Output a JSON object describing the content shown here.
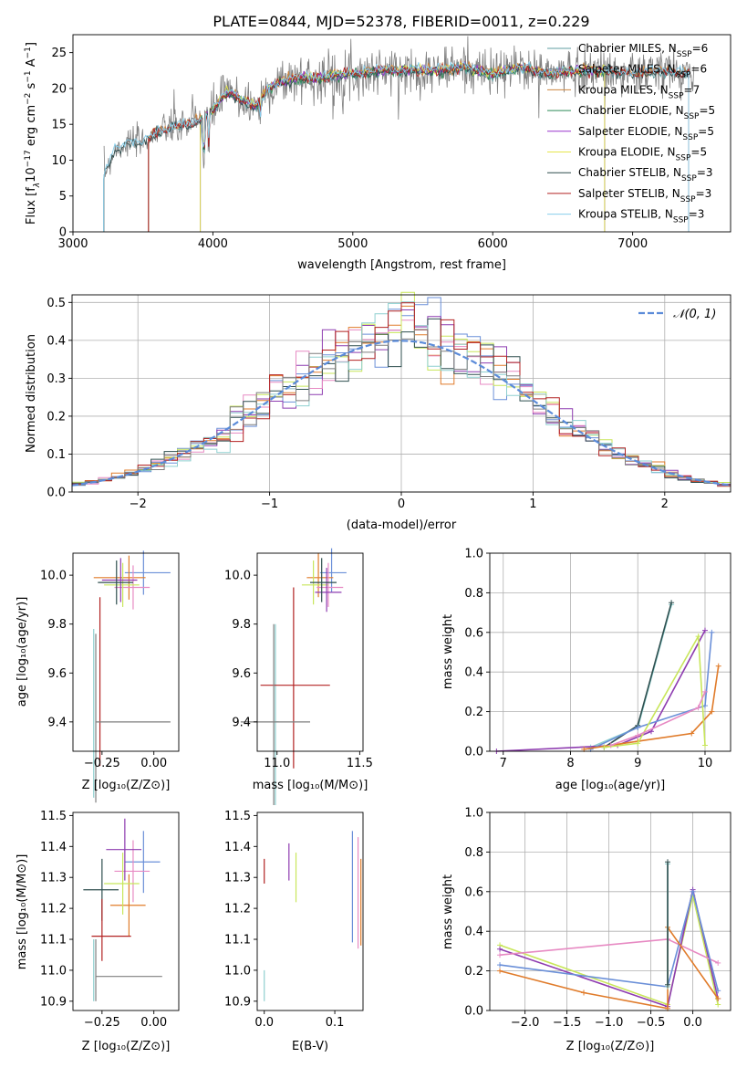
{
  "figure_title": "PLATE=0844, MJD=52378, FIBERID=0011, z=0.229",
  "colors": {
    "chabrier_miles": "#5f9ea0",
    "salpeter_miles": "#708090",
    "kroupa_miles": "#cd853f",
    "chabrier_elodie": "#2e8b57",
    "salpeter_elodie": "#9932cc",
    "kroupa_elodie": "#e6e64c",
    "chabrier_stelib": "#2f4f4f",
    "salpeter_stelib": "#b22222",
    "kroupa_stelib": "#87ceeb",
    "normal": "#5b8bd9",
    "orange": "#e07b2a",
    "blue": "#6a8fd8",
    "purple": "#8e3cb0",
    "pink": "#e78ac3",
    "lime": "#c8e65a",
    "teal": "#8fd0d0",
    "red": "#b22222",
    "dark": "#2f4f4f",
    "grey": "#7f7f7f"
  },
  "chart_data": [
    {
      "type": "line",
      "title": "PLATE=0844, MJD=52378, FIBERID=0011, z=0.229",
      "xlabel": "wavelength [Angstrom, rest frame]",
      "ylabel": "Flux [f_λ 10^-17 erg cm^-2 s^-1 A^-1]",
      "xlim": [
        3000,
        7700
      ],
      "ylim": [
        0,
        27.5
      ],
      "xticks": [
        3000,
        4000,
        5000,
        6000,
        7000
      ],
      "yticks": [
        0,
        5,
        10,
        15,
        20,
        25
      ],
      "grid": false,
      "legend_position": "right",
      "data_x": [
        3220,
        3300,
        3400,
        3500,
        3600,
        3700,
        3800,
        3900,
        4000,
        4100,
        4200,
        4300,
        4400,
        4500,
        4600,
        4700,
        4800,
        4900,
        5000,
        5200,
        5400,
        5600,
        5800,
        6000,
        6200,
        6400,
        6600,
        6800,
        7000,
        7200,
        7400
      ],
      "data_y": [
        8.0,
        11.5,
        12.5,
        12.5,
        14.0,
        14.5,
        15.0,
        15.5,
        17.0,
        19.5,
        18.5,
        17.5,
        20.0,
        21.0,
        21.5,
        21.5,
        21.5,
        22.0,
        22.0,
        22.5,
        22.5,
        22.5,
        23.0,
        22.0,
        23.0,
        22.0,
        22.5,
        22.5,
        22.0,
        22.5,
        22.0
      ],
      "series": [
        {
          "name": "Chabrier MILES, N_SSP=6",
          "xstart": 3540,
          "xend": 7400
        },
        {
          "name": "Salpeter MILES, N_SSP=6",
          "xstart": 3540,
          "xend": 7400
        },
        {
          "name": "Kroupa MILES, N_SSP=7",
          "xstart": 3540,
          "xend": 7400
        },
        {
          "name": "Chabrier ELODIE, N_SSP=5",
          "xstart": 3910,
          "xend": 6800
        },
        {
          "name": "Salpeter ELODIE, N_SSP=5",
          "xstart": 3910,
          "xend": 6800
        },
        {
          "name": "Kroupa ELODIE, N_SSP=5",
          "xstart": 3910,
          "xend": 6800
        },
        {
          "name": "Chabrier STELIB, N_SSP=3",
          "xstart": 3220,
          "xend": 7400
        },
        {
          "name": "Salpeter STELIB, N_SSP=3",
          "xstart": 3540,
          "xend": 7400
        },
        {
          "name": "Kroupa STELIB, N_SSP=3",
          "xstart": 3220,
          "xend": 7400
        }
      ]
    },
    {
      "type": "line",
      "xlabel": "(data-model)/error",
      "ylabel": "Normed distribution",
      "xlim": [
        -2.5,
        2.5
      ],
      "ylim": [
        0,
        0.52
      ],
      "xticks": [
        -2,
        -1,
        0,
        1,
        2
      ],
      "yticks": [
        0.0,
        0.1,
        0.2,
        0.3,
        0.4,
        0.5
      ],
      "grid": true,
      "legend_position": "top-right",
      "legend_label": "𝒩(0, 1)",
      "bins_start": -2.5,
      "bin_width": 0.1
    },
    {
      "type": "scatter",
      "xlabel": "Z [log10(Z/Z⊙)]",
      "ylabel": "age [log10(age/yr)]",
      "xlim": [
        -0.39,
        0.12
      ],
      "ylim": [
        9.28,
        10.09
      ],
      "xticks": [
        -0.25,
        0.0
      ],
      "xticklabels": [
        "−0.25",
        "0.00"
      ],
      "yticks": [
        9.4,
        9.6,
        9.8,
        10.0
      ],
      "points": [
        {
          "x": -0.05,
          "y": 10.01,
          "color": "blue"
        },
        {
          "x": -0.12,
          "y": 9.99,
          "color": "orange"
        },
        {
          "x": -0.1,
          "y": 9.95,
          "color": "pink"
        },
        {
          "x": -0.15,
          "y": 9.96,
          "color": "lime"
        },
        {
          "x": -0.16,
          "y": 9.98,
          "color": "purple"
        },
        {
          "x": -0.18,
          "y": 9.97,
          "color": "dark"
        },
        {
          "x": -0.29,
          "y": 9.42,
          "color": "teal"
        },
        {
          "x": -0.26,
          "y": 9.55,
          "color": "red"
        },
        {
          "x": -0.28,
          "y": 9.4,
          "color": "grey"
        }
      ]
    },
    {
      "type": "scatter",
      "xlabel": "mass [log10(M/M⊙)]",
      "xlim": [
        10.88,
        11.52
      ],
      "ylim": [
        9.28,
        10.09
      ],
      "xticks": [
        11.0,
        11.5
      ],
      "xticklabels": [
        "11.0",
        "11.5"
      ],
      "yticks": [
        9.4,
        9.6,
        9.8,
        10.0
      ]
    },
    {
      "type": "line",
      "xlabel": "age [log10(age/yr)]",
      "ylabel": "mass weight",
      "xlim": [
        6.8,
        10.38
      ],
      "ylim": [
        0,
        1.0
      ],
      "xticks": [
        7,
        8,
        9,
        10
      ],
      "yticks": [
        0.0,
        0.2,
        0.4,
        0.6,
        0.8,
        1.0
      ],
      "grid": true
    },
    {
      "type": "scatter",
      "xlabel": "Z [log10(Z/Z⊙)]",
      "ylabel": "mass [log10(M/M⊙)]",
      "xlim": [
        -0.39,
        0.12
      ],
      "ylim": [
        10.87,
        11.51
      ],
      "xticks": [
        -0.25,
        0.0
      ],
      "xticklabels": [
        "−0.25",
        "0.00"
      ],
      "yticks": [
        10.9,
        11.0,
        11.1,
        11.2,
        11.3,
        11.4,
        11.5
      ]
    },
    {
      "type": "scatter",
      "xlabel": "E(B-V)",
      "xlim": [
        -0.01,
        0.14
      ],
      "ylim": [
        10.87,
        11.51
      ],
      "xticks": [
        0.0,
        0.1
      ],
      "xticklabels": [
        "0.0",
        "0.1"
      ],
      "yticks": [
        10.9,
        11.0,
        11.1,
        11.2,
        11.3,
        11.4,
        11.5
      ]
    },
    {
      "type": "line",
      "xlabel": "Z [log10(Z/Z⊙)]",
      "ylabel": "mass weight",
      "xlim": [
        -2.42,
        0.45
      ],
      "ylim": [
        0,
        1.0
      ],
      "xticks": [
        -2.0,
        -1.5,
        -1.0,
        -0.5,
        0.0
      ],
      "xticklabels": [
        "−2.0",
        "−1.5",
        "−1.0",
        "−0.5",
        "0.0"
      ],
      "yticks": [
        0.0,
        0.2,
        0.4,
        0.6,
        0.8,
        1.0
      ],
      "grid": true
    }
  ]
}
